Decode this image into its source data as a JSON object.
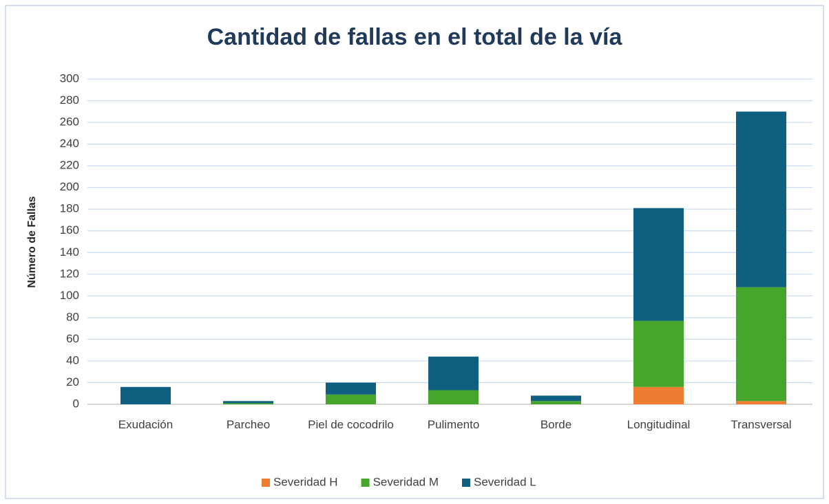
{
  "chart_data": {
    "type": "stacked_bar",
    "title": "Cantidad de fallas en el total de la vía",
    "y_label": "Número de Fallas",
    "categories": [
      "Exudación",
      "Parcheo",
      "Piel de cocodrilo",
      "Pulimento",
      "Borde",
      "Longitudinal",
      "Transversal"
    ],
    "series": [
      {
        "name": "Severidad H",
        "color": "#ed7d31",
        "values": [
          0,
          0,
          0,
          0,
          0,
          16,
          3
        ]
      },
      {
        "name": "Severidad M",
        "color": "#46a62c",
        "values": [
          0,
          1,
          9,
          13,
          3,
          61,
          105
        ]
      },
      {
        "name": "Severidad L",
        "color": "#0f5f80",
        "values": [
          16,
          2,
          11,
          31,
          5,
          104,
          162
        ]
      }
    ],
    "ylim": [
      0,
      300
    ],
    "yticks": [
      0,
      20,
      40,
      60,
      80,
      100,
      120,
      140,
      160,
      180,
      200,
      220,
      240,
      260,
      280,
      300
    ],
    "grid": true,
    "legend": "bottom"
  }
}
